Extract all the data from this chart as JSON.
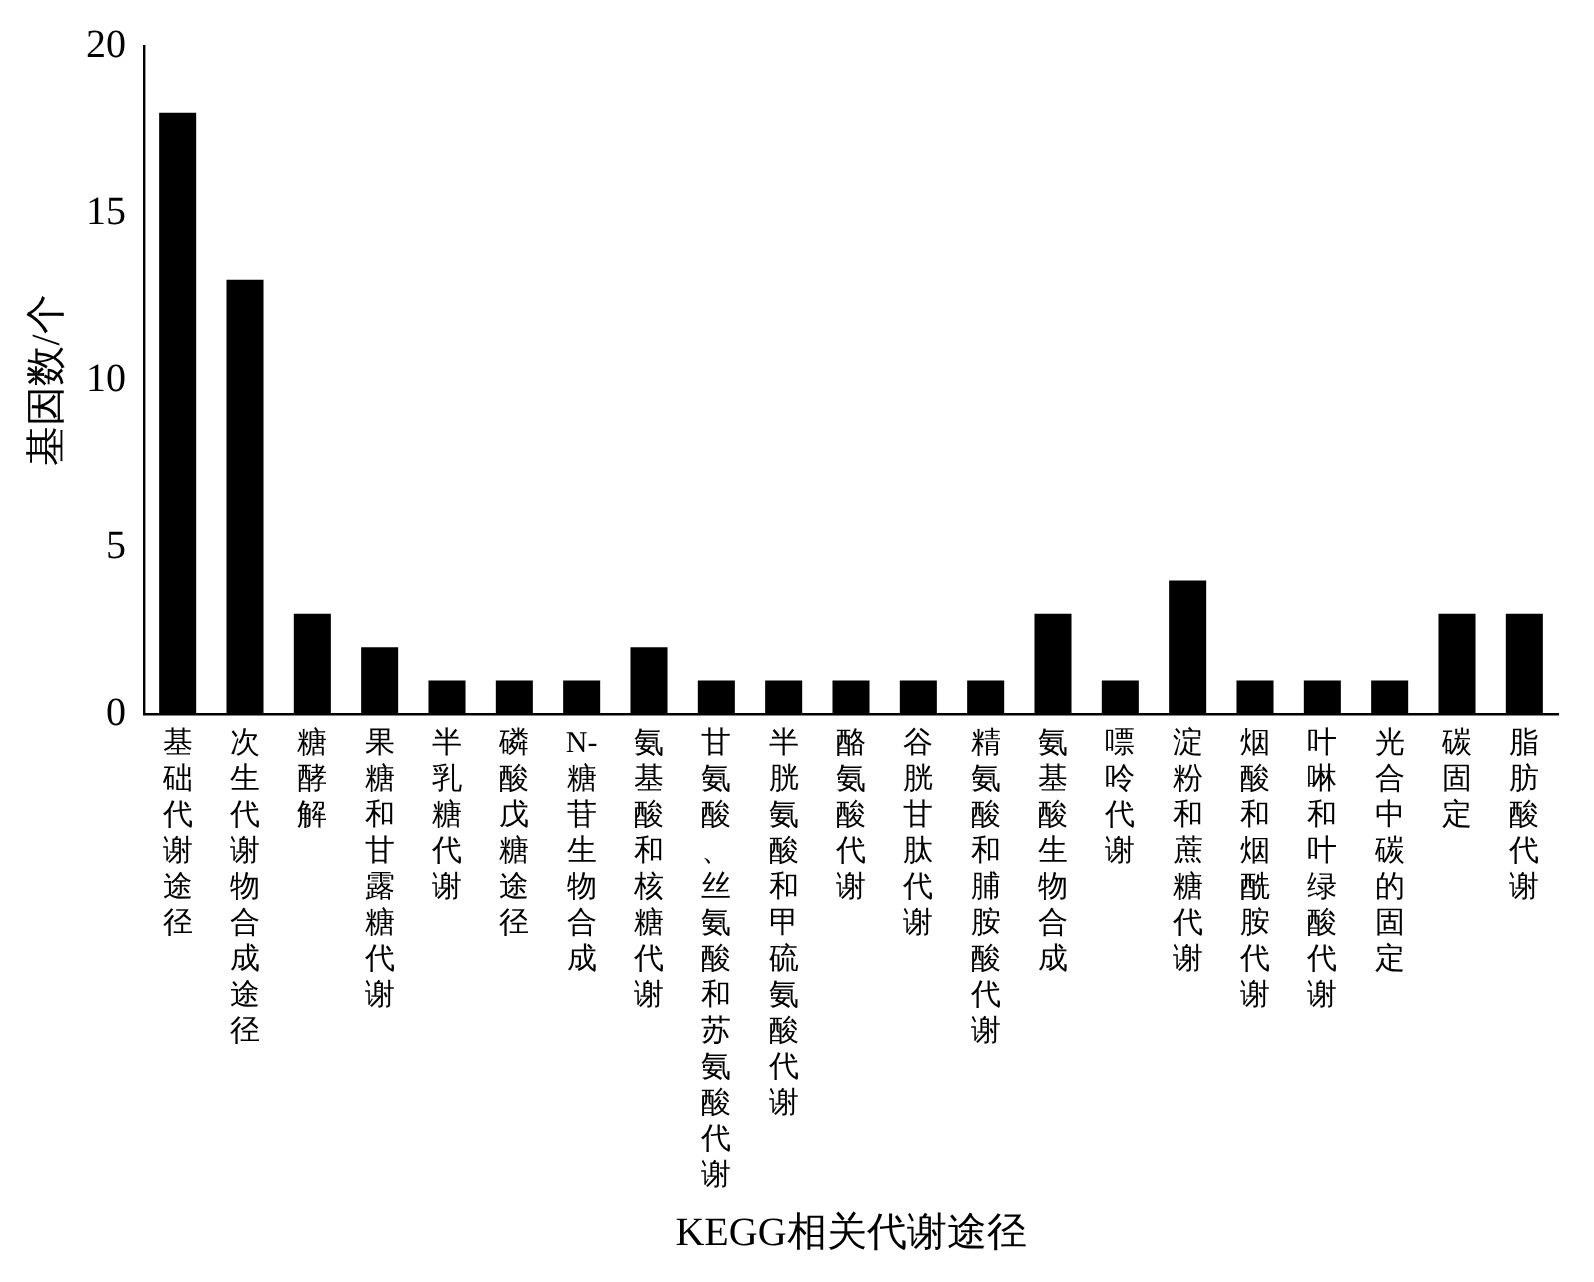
{
  "chart_data": {
    "type": "bar",
    "xlabel": "KEGG相关代谢途径",
    "ylabel": "基因数/个",
    "categories": [
      "基础代谢途径",
      "次生代谢物合成途径",
      "糖酵解",
      "果糖和甘露糖代谢",
      "半乳糖代谢",
      "磷酸戊糖途径",
      "N-糖苷生物合成",
      "氨基酸和核糖代谢",
      "甘氨酸、丝氨酸和苏氨酸代谢",
      "半胱氨酸和甲硫氨酸代谢",
      "酪氨酸代谢",
      "谷胱甘肽代谢",
      "精氨酸和脯胺酸代谢",
      "氨基酸生物合成",
      "嘌呤代谢",
      "淀粉和蔗糖代谢",
      "烟酸和烟酰胺代谢",
      "叶啉和叶绿酸代谢",
      "光合中碳的固定",
      "碳固定",
      "脂肪酸代谢"
    ],
    "values": [
      18,
      13,
      3,
      2,
      1,
      1,
      1,
      2,
      1,
      1,
      1,
      1,
      1,
      3,
      1,
      4,
      1,
      1,
      1,
      3,
      3
    ],
    "color": "#000000",
    "ylim": [
      0,
      20
    ],
    "yticks": [
      0,
      5,
      10,
      15,
      20
    ],
    "grid": false,
    "legend": false
  }
}
